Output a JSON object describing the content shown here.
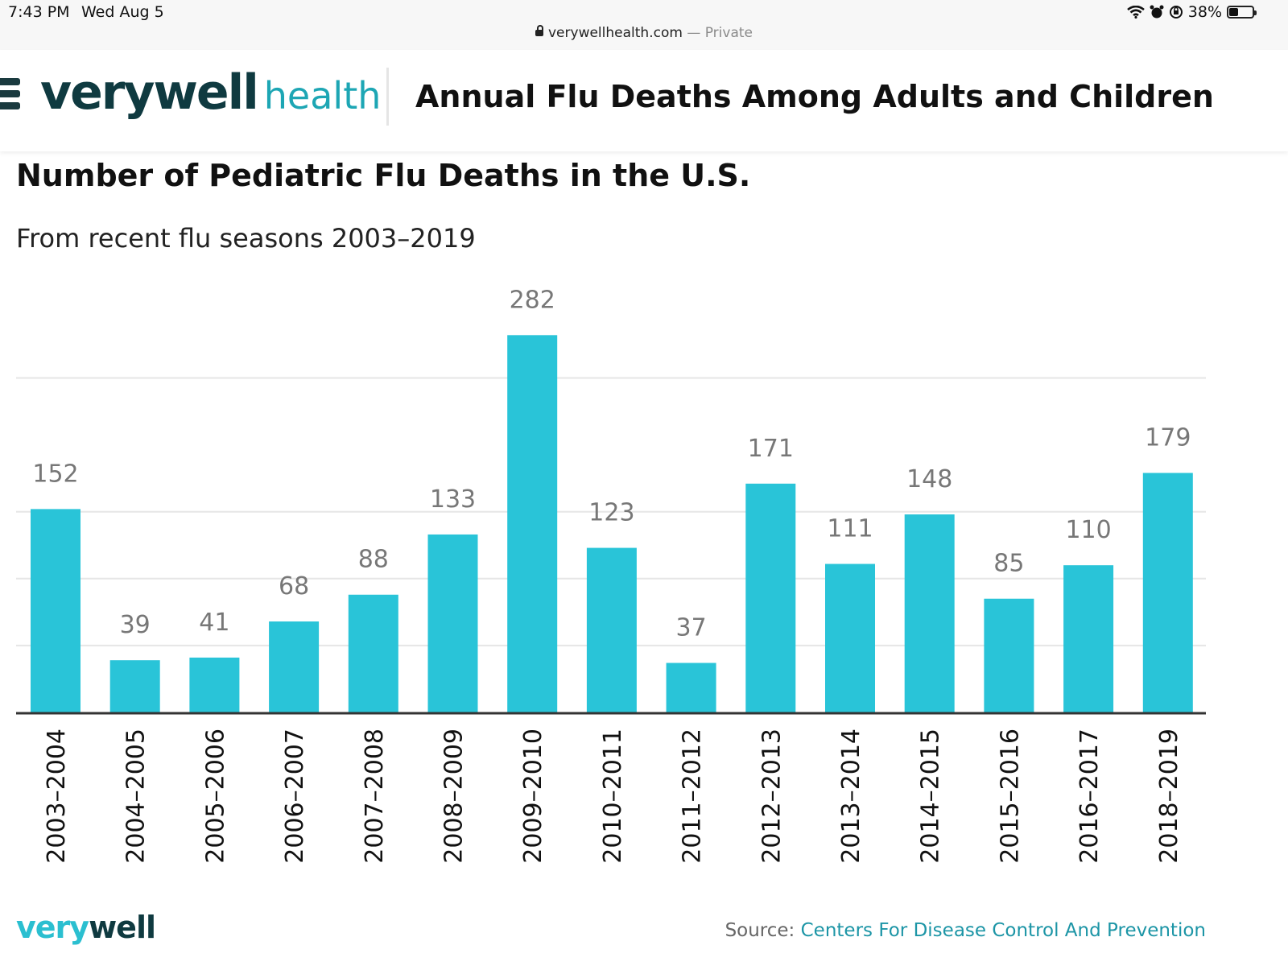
{
  "status_bar": {
    "time": "7:43 PM",
    "date": "Wed Aug 5",
    "battery": "38%",
    "battery_level": 0.38,
    "icons": [
      "wifi-icon",
      "alarm-icon",
      "orientation-lock-icon",
      "battery-icon"
    ]
  },
  "browser": {
    "domain": "verywellhealth.com",
    "mode": "— Private"
  },
  "header": {
    "logo_very": "verywell",
    "logo_health": "health",
    "title": "Annual Flu Deaths Among Adults and Children"
  },
  "footer": {
    "logo_a": "very",
    "logo_b": "well",
    "source_label": "Source:",
    "source_link": "Centers For Disease Control And Prevention"
  },
  "colors": {
    "bar": "#29c4d8",
    "brand_dark": "#0f3a40",
    "brand_accent": "#1da6b4"
  },
  "chart_data": {
    "type": "bar",
    "title": "Number of Pediatric Flu Deaths in the U.S.",
    "subtitle": "From recent flu seasons 2003–2019",
    "xlabel": "",
    "ylabel": "",
    "categories": [
      "2003–2004",
      "2004–2005",
      "2005–2006",
      "2006–2007",
      "2007–2008",
      "2008–2009",
      "2009–2010",
      "2010–2011",
      "2011–2012",
      "2012–2013",
      "2013–2014",
      "2014–2015",
      "2015–2016",
      "2016–2017",
      "2018–2019"
    ],
    "values": [
      152,
      39,
      41,
      68,
      88,
      133,
      282,
      123,
      37,
      171,
      111,
      148,
      85,
      110,
      179
    ],
    "ylim": [
      0,
      300
    ],
    "gridlines": [
      50,
      100,
      150,
      250
    ],
    "grid": true,
    "legend": "none"
  }
}
